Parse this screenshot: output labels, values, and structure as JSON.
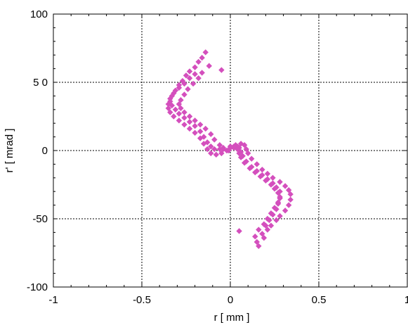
{
  "chart_data": {
    "type": "scatter",
    "title": "",
    "xlabel": "r   [ mm ]",
    "ylabel": "r'   [ mrad ]",
    "xlim": [
      -1,
      1
    ],
    "ylim": [
      -100,
      100
    ],
    "x_ticks": [
      {
        "value": -1,
        "label": "-1"
      },
      {
        "value": -0.5,
        "label": "-0.5"
      },
      {
        "value": 0,
        "label": "0"
      },
      {
        "value": 0.5,
        "label": "0.5"
      },
      {
        "value": 1,
        "label": "1"
      }
    ],
    "y_ticks": [
      {
        "value": 100,
        "label": "100"
      },
      {
        "value": 50,
        "label": "5 0"
      },
      {
        "value": 0,
        "label": "0"
      },
      {
        "value": -50,
        "label": "-50"
      },
      {
        "value": -100,
        "label": "-100"
      }
    ],
    "grid": true,
    "marker": "diamond",
    "color": "#d44fbd",
    "series": [
      {
        "points": [
          [
            -0.2,
            56
          ],
          [
            -0.23,
            53
          ],
          [
            -0.26,
            49
          ],
          [
            -0.29,
            46
          ],
          [
            -0.32,
            42
          ],
          [
            -0.34,
            38
          ],
          [
            -0.35,
            34
          ],
          [
            -0.35,
            31
          ],
          [
            -0.34,
            28
          ],
          [
            -0.32,
            25
          ],
          [
            -0.29,
            22
          ],
          [
            -0.26,
            19
          ],
          [
            -0.23,
            16
          ],
          [
            -0.2,
            13
          ],
          [
            -0.17,
            9
          ],
          [
            -0.15,
            5
          ],
          [
            -0.13,
            1
          ],
          [
            -0.11,
            -2
          ],
          [
            -0.08,
            -3
          ],
          [
            -0.05,
            -2
          ],
          [
            -0.02,
            0
          ],
          [
            0.0,
            2
          ],
          [
            0.03,
            4
          ],
          [
            0.06,
            5
          ],
          [
            0.08,
            4
          ],
          [
            0.09,
            1
          ],
          [
            0.1,
            -2
          ],
          [
            0.12,
            -6
          ],
          [
            0.15,
            -10
          ],
          [
            0.18,
            -14
          ],
          [
            0.21,
            -17
          ],
          [
            0.24,
            -20
          ],
          [
            0.28,
            -23
          ],
          [
            0.31,
            -26
          ],
          [
            0.33,
            -29
          ],
          [
            0.34,
            -32
          ],
          [
            0.34,
            -36
          ],
          [
            0.33,
            -40
          ],
          [
            0.31,
            -44
          ],
          [
            0.28,
            -48
          ],
          [
            0.26,
            -51
          ],
          [
            0.23,
            -55
          ],
          [
            0.21,
            -58
          ],
          [
            0.18,
            -61
          ],
          [
            -0.16,
            57
          ],
          [
            -0.18,
            53
          ],
          [
            -0.21,
            49
          ],
          [
            -0.24,
            45
          ],
          [
            -0.26,
            41
          ],
          [
            -0.28,
            37
          ],
          [
            -0.29,
            34
          ],
          [
            -0.28,
            31
          ],
          [
            -0.26,
            28
          ],
          [
            -0.23,
            25
          ],
          [
            -0.2,
            22
          ],
          [
            -0.17,
            19
          ],
          [
            -0.14,
            16
          ],
          [
            -0.11,
            12
          ],
          [
            -0.09,
            8
          ],
          [
            -0.06,
            4
          ],
          [
            -0.04,
            1
          ],
          [
            -0.01,
            0
          ],
          [
            0.02,
            2
          ],
          [
            0.04,
            3
          ],
          [
            0.05,
            2
          ],
          [
            0.06,
            -1
          ],
          [
            0.07,
            -4
          ],
          [
            0.09,
            -8
          ],
          [
            0.12,
            -12
          ],
          [
            0.15,
            -15
          ],
          [
            0.18,
            -18
          ],
          [
            0.21,
            -21
          ],
          [
            0.24,
            -24
          ],
          [
            0.26,
            -27
          ],
          [
            0.28,
            -30
          ],
          [
            0.28,
            -34
          ],
          [
            0.27,
            -38
          ],
          [
            0.25,
            -42
          ],
          [
            0.23,
            -46
          ],
          [
            0.21,
            -50
          ],
          [
            0.19,
            -54
          ],
          [
            0.16,
            -58
          ],
          [
            -0.23,
            58
          ],
          [
            -0.25,
            55
          ],
          [
            -0.27,
            51
          ],
          [
            -0.29,
            48
          ],
          [
            -0.31,
            44
          ],
          [
            -0.33,
            40
          ],
          [
            -0.34,
            36
          ],
          [
            -0.33,
            33
          ],
          [
            -0.31,
            30
          ],
          [
            -0.29,
            27
          ],
          [
            -0.26,
            24
          ],
          [
            -0.23,
            21
          ],
          [
            -0.2,
            18
          ],
          [
            -0.17,
            14
          ],
          [
            -0.15,
            10
          ],
          [
            -0.13,
            6
          ],
          [
            -0.11,
            3
          ],
          [
            -0.09,
            1
          ],
          [
            -0.06,
            1
          ],
          [
            -0.04,
            2
          ],
          [
            0.0,
            3
          ],
          [
            0.02,
            3
          ],
          [
            0.04,
            1
          ],
          [
            0.05,
            -2
          ],
          [
            0.06,
            -5
          ],
          [
            0.08,
            -9
          ],
          [
            0.11,
            -13
          ],
          [
            0.14,
            -16
          ],
          [
            0.17,
            -19
          ],
          [
            0.2,
            -22
          ],
          [
            0.23,
            -25
          ],
          [
            0.25,
            -28
          ],
          [
            0.27,
            -31
          ],
          [
            0.28,
            -35
          ],
          [
            0.27,
            -39
          ],
          [
            0.26,
            -43
          ],
          [
            0.24,
            -47
          ],
          [
            0.22,
            -51
          ],
          [
            0.2,
            -55
          ],
          [
            -0.14,
            72
          ],
          [
            -0.16,
            68
          ],
          [
            -0.18,
            65
          ],
          [
            -0.2,
            61
          ],
          [
            -0.12,
            62
          ],
          [
            -0.05,
            59
          ],
          [
            0.05,
            -59
          ],
          [
            0.14,
            -63
          ],
          [
            0.15,
            -67
          ],
          [
            0.16,
            -70
          ],
          [
            0.19,
            -64
          ]
        ]
      }
    ]
  }
}
